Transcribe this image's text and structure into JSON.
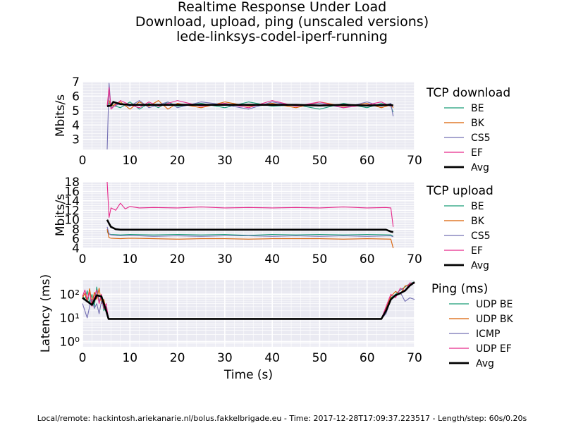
{
  "title": {
    "line1": "Realtime Response Under Load",
    "line2": "Download, upload, ping (unscaled versions)",
    "line3": "lede-linksys-codel-iperf-running"
  },
  "footer": "Local/remote: hackintosh.ariekanarie.nl/bolus.fakkelbrigade.eu - Time: 2017-12-28T17:09:37.223517 - Length/step: 60s/0.20s",
  "colors": {
    "BE": "#1b9e77",
    "BK": "#d95f02",
    "CS5": "#7570b3",
    "EF": "#e7298a",
    "Avg": "#000000",
    "grid": "#ffffff",
    "bg": "#eaeaf2"
  },
  "chart_data": [
    {
      "type": "line",
      "ylabel": "Mbits/s",
      "xlim": [
        0,
        70
      ],
      "ylim": [
        2.3,
        7.0
      ],
      "yticks": [
        3,
        4,
        5,
        6,
        7
      ],
      "xticks": [
        0,
        10,
        20,
        30,
        40,
        50,
        60,
        70
      ],
      "legend_title": "TCP download",
      "legend_position": "right",
      "series": [
        {
          "name": "BE",
          "key": "BE",
          "x": [
            5.2,
            5.6,
            6,
            8,
            10,
            12,
            14,
            16,
            18,
            20,
            25,
            30,
            35,
            40,
            45,
            50,
            55,
            60,
            63,
            65,
            65.5
          ],
          "y": [
            5.3,
            5.5,
            5.4,
            5.2,
            5.6,
            5.1,
            5.5,
            5.2,
            5.6,
            5.3,
            5.5,
            5.2,
            5.6,
            5.3,
            5.4,
            5.1,
            5.5,
            5.2,
            5.5,
            5.3,
            4.9
          ]
        },
        {
          "name": "BK",
          "key": "BK",
          "x": [
            5.2,
            5.6,
            6,
            8,
            10,
            12,
            14,
            16,
            18,
            20,
            25,
            30,
            35,
            40,
            45,
            50,
            55,
            60,
            63,
            65,
            65.5
          ],
          "y": [
            5.4,
            5.7,
            5.3,
            5.6,
            5.1,
            5.6,
            5.3,
            5.7,
            5.1,
            5.5,
            5.2,
            5.6,
            5.3,
            5.5,
            5.2,
            5.6,
            5.3,
            5.5,
            5.2,
            5.4,
            5.2
          ]
        },
        {
          "name": "CS5",
          "key": "CS5",
          "x": [
            5.2,
            5.6,
            6,
            8,
            10,
            12,
            14,
            16,
            18,
            20,
            25,
            30,
            35,
            40,
            45,
            50,
            55,
            60,
            63,
            65,
            65.5
          ],
          "y": [
            2.3,
            6.9,
            5.2,
            5.5,
            5.3,
            5.7,
            5.2,
            5.4,
            5.6,
            5.2,
            5.6,
            5.4,
            5.1,
            5.6,
            5.3,
            5.5,
            5.2,
            5.6,
            5.3,
            5.5,
            4.6
          ]
        },
        {
          "name": "EF",
          "key": "EF",
          "x": [
            5.2,
            5.6,
            6,
            8,
            10,
            12,
            14,
            16,
            18,
            20,
            25,
            30,
            35,
            40,
            45,
            50,
            55,
            60,
            63,
            65,
            65.5
          ],
          "y": [
            5.3,
            6.6,
            5.1,
            5.7,
            5.4,
            5.2,
            5.6,
            5.3,
            5.5,
            5.7,
            5.3,
            5.5,
            5.2,
            5.7,
            5.3,
            5.6,
            5.2,
            5.4,
            5.6,
            5.3,
            5.4
          ]
        },
        {
          "name": "Avg",
          "key": "Avg",
          "x": [
            5.2,
            6,
            6.5,
            8,
            10,
            15,
            20,
            25,
            30,
            35,
            40,
            45,
            50,
            55,
            60,
            65,
            65.5
          ],
          "y": [
            5.3,
            5.35,
            5.6,
            5.45,
            5.4,
            5.4,
            5.4,
            5.4,
            5.4,
            5.4,
            5.4,
            5.4,
            5.35,
            5.4,
            5.35,
            5.4,
            5.35
          ]
        }
      ]
    },
    {
      "type": "line",
      "ylabel": "Mbits/s",
      "xlim": [
        0,
        70
      ],
      "ylim": [
        4,
        18
      ],
      "yticks": [
        4,
        6,
        8,
        10,
        12,
        14,
        16,
        18
      ],
      "xticks": [
        0,
        10,
        20,
        30,
        40,
        50,
        60,
        70
      ],
      "legend_title": "TCP upload",
      "legend_position": "right",
      "series": [
        {
          "name": "BE",
          "key": "BE",
          "x": [
            5.2,
            5.6,
            6,
            8,
            10,
            15,
            20,
            25,
            30,
            35,
            40,
            45,
            50,
            55,
            60,
            65,
            65.5
          ],
          "y": [
            7.5,
            7.0,
            6.9,
            6.8,
            6.9,
            6.8,
            6.9,
            6.8,
            6.9,
            6.7,
            6.9,
            6.8,
            6.9,
            6.8,
            6.9,
            6.8,
            6.5
          ]
        },
        {
          "name": "BK",
          "key": "BK",
          "x": [
            5.2,
            5.6,
            6,
            8,
            10,
            15,
            20,
            25,
            30,
            35,
            40,
            45,
            50,
            55,
            60,
            65,
            65.5
          ],
          "y": [
            8.0,
            6.2,
            6.1,
            6.0,
            6.1,
            6.0,
            5.9,
            6.0,
            6.0,
            5.9,
            6.0,
            6.0,
            6.0,
            5.9,
            6.0,
            5.9,
            4.0
          ]
        },
        {
          "name": "CS5",
          "key": "CS5",
          "x": [
            5.2,
            5.6,
            6,
            8,
            10,
            15,
            20,
            25,
            30,
            35,
            40,
            45,
            50,
            55,
            60,
            65,
            65.5
          ],
          "y": [
            8.5,
            7.0,
            6.8,
            6.6,
            6.7,
            6.5,
            6.6,
            6.5,
            6.6,
            6.6,
            6.5,
            6.6,
            6.5,
            6.6,
            6.5,
            6.6,
            6.4
          ]
        },
        {
          "name": "EF",
          "key": "EF",
          "x": [
            5.2,
            5.6,
            6,
            7,
            8,
            9,
            10,
            12,
            15,
            20,
            25,
            30,
            35,
            40,
            45,
            50,
            55,
            60,
            64,
            65,
            65.5
          ],
          "y": [
            18,
            10.5,
            12.5,
            12.0,
            13.5,
            12.3,
            12.8,
            12.5,
            12.6,
            12.5,
            12.7,
            12.5,
            12.6,
            12.5,
            12.6,
            12.5,
            12.7,
            12.5,
            12.6,
            12.5,
            8.5
          ]
        },
        {
          "name": "Avg",
          "key": "Avg",
          "x": [
            5.2,
            5.6,
            6,
            7,
            8,
            10,
            15,
            20,
            25,
            30,
            35,
            40,
            45,
            50,
            55,
            60,
            64,
            65,
            65.5
          ],
          "y": [
            10.0,
            9.2,
            8.5,
            8.0,
            7.9,
            7.9,
            7.9,
            7.9,
            7.9,
            7.9,
            7.9,
            7.9,
            7.9,
            7.9,
            7.9,
            7.9,
            7.9,
            7.5,
            7.4
          ]
        }
      ]
    },
    {
      "type": "line",
      "ylabel": "Latency (ms)",
      "xlabel": "Time (s)",
      "yscale": "log",
      "xlim": [
        0,
        70
      ],
      "ylim": [
        0.6,
        400
      ],
      "yticks": [
        1,
        10,
        100
      ],
      "ytick_labels": [
        "10⁰",
        "10¹",
        "10²"
      ],
      "xticks": [
        0,
        10,
        20,
        30,
        40,
        50,
        60,
        70
      ],
      "legend_title": "Ping (ms)",
      "legend_position": "right",
      "series": [
        {
          "name": "UDP BE",
          "key": "BE",
          "x": [
            0,
            0.5,
            1,
            1.5,
            2,
            2.5,
            3,
            3.5,
            4,
            4.5,
            5,
            5.5,
            6,
            8,
            10,
            20,
            30,
            40,
            50,
            55,
            60,
            63,
            64,
            65,
            66,
            67,
            68,
            69,
            70
          ],
          "y": [
            90,
            60,
            140,
            40,
            100,
            30,
            200,
            50,
            80,
            20,
            30,
            9,
            9,
            9,
            9,
            9,
            9,
            9,
            9,
            9,
            9,
            9,
            20,
            70,
            100,
            150,
            200,
            280,
            330
          ]
        },
        {
          "name": "UDP BK",
          "key": "BK",
          "x": [
            0,
            0.5,
            1,
            1.5,
            2,
            2.5,
            3,
            3.5,
            4,
            4.5,
            5,
            5.5,
            6,
            8,
            10,
            20,
            30,
            40,
            50,
            55,
            60,
            63,
            64,
            65,
            66,
            67,
            68,
            69,
            70
          ],
          "y": [
            70,
            110,
            50,
            170,
            40,
            120,
            60,
            180,
            40,
            60,
            20,
            9,
            9,
            9,
            9,
            9,
            9,
            9,
            9,
            9,
            9,
            9,
            25,
            80,
            130,
            100,
            220,
            250,
            320
          ]
        },
        {
          "name": "ICMP",
          "key": "CS5",
          "x": [
            0,
            0.5,
            1,
            1.5,
            2,
            2.5,
            3,
            3.5,
            4,
            4.5,
            5,
            5.5,
            6,
            8,
            10,
            20,
            30,
            40,
            50,
            55,
            60,
            63,
            64,
            65,
            66,
            67,
            68,
            69,
            70
          ],
          "y": [
            40,
            20,
            10,
            30,
            60,
            25,
            40,
            15,
            50,
            30,
            20,
            9,
            9,
            9,
            9,
            9,
            9,
            9,
            9,
            9,
            9,
            9,
            15,
            60,
            90,
            120,
            50,
            70,
            60
          ]
        },
        {
          "name": "UDP EF",
          "key": "EF",
          "x": [
            0,
            0.5,
            1,
            1.5,
            2,
            2.5,
            3,
            3.5,
            4,
            4.5,
            5,
            5.5,
            6,
            8,
            10,
            20,
            30,
            40,
            50,
            55,
            60,
            63,
            64,
            65,
            66,
            67,
            68,
            69,
            70
          ],
          "y": [
            80,
            150,
            60,
            120,
            30,
            80,
            150,
            40,
            100,
            25,
            40,
            9,
            9,
            9,
            9,
            9,
            9,
            9,
            9,
            9,
            9,
            9,
            30,
            100,
            70,
            180,
            140,
            300,
            280
          ]
        },
        {
          "name": "Avg",
          "key": "Avg",
          "x": [
            0,
            1,
            2,
            3,
            4,
            5,
            5.5,
            6,
            8,
            10,
            20,
            30,
            40,
            50,
            55,
            60,
            63,
            64,
            65,
            66,
            67,
            68,
            69,
            70
          ],
          "y": [
            70,
            50,
            35,
            90,
            80,
            20,
            9,
            9,
            9,
            9,
            9,
            9,
            9,
            9,
            9,
            9,
            9,
            20,
            60,
            90,
            110,
            140,
            230,
            320
          ]
        }
      ]
    }
  ]
}
